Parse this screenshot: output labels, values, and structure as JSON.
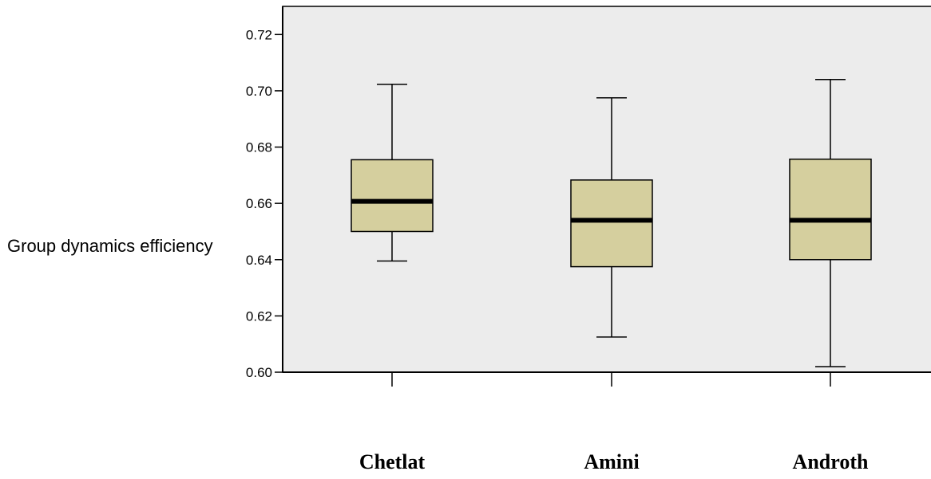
{
  "chart_data": {
    "type": "boxplot",
    "title": "",
    "xlabel": "",
    "ylabel": "Group dynamics efficiency",
    "ylim": [
      0.6,
      0.73
    ],
    "yticks": [
      "0.60",
      "0.62",
      "0.64",
      "0.66",
      "0.68",
      "0.70",
      "0.72"
    ],
    "categories": [
      "Chetlat",
      "Amini",
      "Androth"
    ],
    "boxes": [
      {
        "category": "Chetlat",
        "min": 0.6395,
        "q1": 0.65,
        "median": 0.6607,
        "q3": 0.6755,
        "max": 0.7023
      },
      {
        "category": "Amini",
        "min": 0.6125,
        "q1": 0.6375,
        "median": 0.654,
        "q3": 0.6683,
        "max": 0.6975
      },
      {
        "category": "Androth",
        "min": 0.602,
        "q1": 0.64,
        "median": 0.654,
        "q3": 0.6757,
        "max": 0.704
      }
    ],
    "grid": false,
    "colors": {
      "plot_bg": "#ececec",
      "box_fill": "#d5cf9e",
      "stroke": "#000000"
    }
  }
}
